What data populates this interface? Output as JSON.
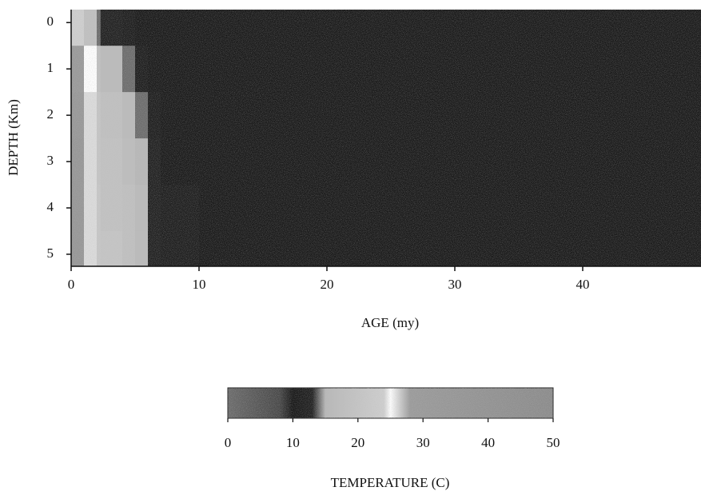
{
  "chart_data": {
    "type": "heatmap",
    "xlabel": "AGE (my)",
    "ylabel": "DEPTH (Km)",
    "xbins": [
      0,
      1,
      2,
      2.3,
      4,
      5,
      6,
      7,
      10,
      20,
      30,
      40,
      49.25
    ],
    "ybins": [
      -0.28,
      0.5,
      1.5,
      2.5,
      3.5,
      4.5,
      5.26
    ],
    "z": [
      [
        24,
        18,
        14,
        13,
        12,
        11,
        11,
        11,
        11,
        11,
        11,
        11
      ],
      [
        30,
        25,
        18,
        16,
        14,
        12,
        11,
        11,
        11,
        11,
        11,
        11
      ],
      [
        32,
        26,
        20,
        18,
        16,
        14,
        12,
        11,
        11,
        11,
        11,
        11
      ],
      [
        33,
        26,
        20,
        19,
        17,
        15,
        13,
        11,
        11,
        11,
        11,
        11
      ],
      [
        34,
        26,
        21,
        19,
        18,
        16,
        13,
        12,
        11,
        11,
        11,
        11
      ],
      [
        34,
        26,
        21,
        20,
        18,
        16,
        13,
        12,
        11,
        11,
        11,
        11
      ]
    ],
    "xlim": [
      0,
      49.25
    ],
    "xticks": [
      0,
      10,
      20,
      30,
      40
    ],
    "ylim": [
      -0.28,
      5.26
    ],
    "yticks": [
      0,
      1,
      2,
      3,
      4,
      5
    ],
    "y_inverted": true,
    "zlabel": "TEMPERATURE (C)",
    "zlim": [
      0,
      50
    ],
    "zticks": [
      0,
      10,
      20,
      30,
      40,
      50
    ],
    "colorscale": [
      [
        0,
        "#6a6a6a"
      ],
      [
        8,
        "#454545"
      ],
      [
        10,
        "#141414"
      ],
      [
        13,
        "#1e1e1e"
      ],
      [
        15,
        "#b8b8b8"
      ],
      [
        24,
        "#cfcfcf"
      ],
      [
        25,
        "#ffffff"
      ],
      [
        26,
        "#dcdcdc"
      ],
      [
        28,
        "#9a9a9a"
      ],
      [
        50,
        "#8a8a8a"
      ]
    ]
  }
}
